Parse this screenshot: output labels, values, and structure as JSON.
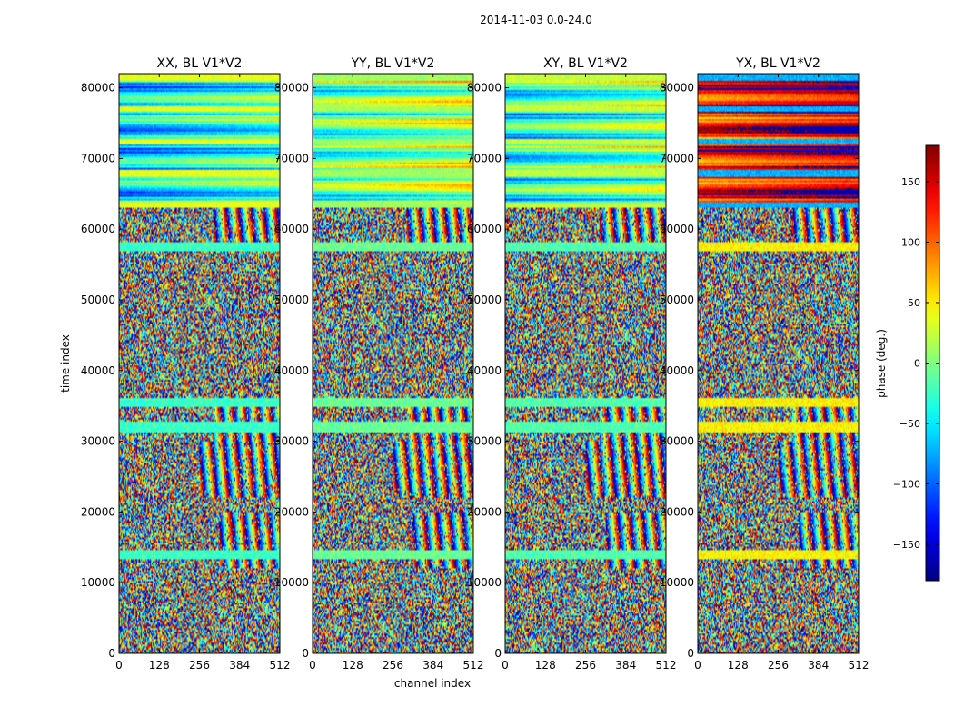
{
  "chart_data": {
    "type": "heatmap",
    "suptitle": "2014-11-03 0.0-24.0",
    "xlabel": "channel index",
    "ylabel": "time index",
    "xlim": [
      0,
      512
    ],
    "ylim": [
      0,
      82000
    ],
    "x_ticks": [
      0,
      128,
      256,
      384,
      512
    ],
    "y_ticks": [
      0,
      10000,
      20000,
      30000,
      40000,
      50000,
      60000,
      70000,
      80000
    ],
    "panels": [
      {
        "title": "XX, BL V1*V2",
        "baseline_phase": -60
      },
      {
        "title": "YY, BL V1*V2",
        "baseline_phase": -20
      },
      {
        "title": "XY, BL V1*V2",
        "baseline_phase": -40
      },
      {
        "title": "YX, BL V1*V2",
        "baseline_phase": 120
      }
    ],
    "colorbar": {
      "label": "phase (deg.)",
      "range": [
        -180,
        180
      ],
      "ticks": [
        -150,
        -100,
        -50,
        0,
        50,
        100,
        150
      ],
      "colormap": "jet"
    },
    "noise_band": [
      0,
      63000
    ],
    "coherent_band": [
      63000,
      82000
    ],
    "coherent_stripes_time": [
      14000,
      32000,
      35500,
      57500
    ],
    "fringe_regions": [
      {
        "time": [
          12000,
          20000
        ],
        "channel": [
          320,
          512
        ]
      },
      {
        "time": [
          22000,
          30000
        ],
        "channel": [
          256,
          512
        ]
      },
      {
        "time": [
          30000,
          36500
        ],
        "channel": [
          300,
          512
        ]
      },
      {
        "time": [
          57000,
          63000
        ],
        "channel": [
          300,
          512
        ]
      }
    ]
  }
}
